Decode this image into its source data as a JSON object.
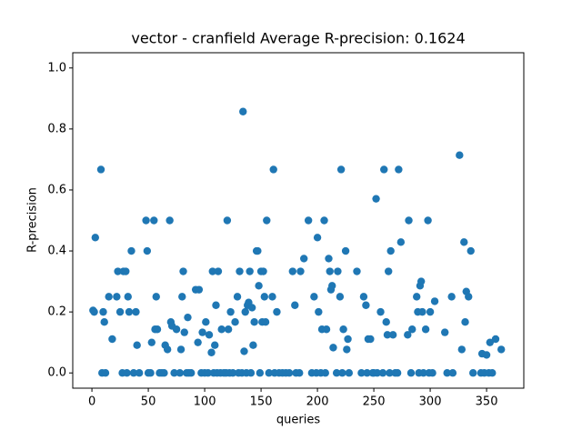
{
  "chart_data": {
    "type": "scatter",
    "title": "vector - cranfield  Average R-precision: 0.1624",
    "x_label": "queries",
    "y_label": "R-precision",
    "xlim": [
      -17,
      383
    ],
    "ylim": [
      -0.05,
      1.05
    ],
    "xticks": [
      0,
      50,
      100,
      150,
      200,
      250,
      300,
      350
    ],
    "yticks": [
      {
        "value": 0,
        "label": "0.0"
      },
      {
        "value": 0.2,
        "label": "0.2"
      },
      {
        "value": 0.4,
        "label": "0.4"
      },
      {
        "value": 0.6,
        "label": "0.6"
      },
      {
        "value": 0.8,
        "label": "0.8"
      },
      {
        "value": 1,
        "label": "1.0"
      }
    ],
    "series": [
      {
        "color": "#1f77b4",
        "x": [
          1,
          2,
          3,
          8,
          9,
          10,
          11,
          12,
          15,
          18,
          22,
          23,
          25,
          27,
          28,
          30,
          31,
          32,
          33,
          35,
          37,
          39,
          40,
          42,
          48,
          49,
          50,
          52,
          53,
          55,
          56,
          57,
          58,
          60,
          62,
          64,
          65,
          67,
          69,
          70,
          71,
          73,
          75,
          78,
          79,
          80,
          81,
          82,
          84,
          85,
          86,
          88,
          92,
          94,
          95,
          97,
          98,
          100,
          101,
          103,
          104,
          106,
          107,
          108,
          109,
          110,
          111,
          112,
          114,
          115,
          117,
          119,
          120,
          121,
          122,
          123,
          125,
          127,
          129,
          130,
          131,
          133,
          134,
          135,
          136,
          137,
          138,
          139,
          140,
          141,
          142,
          143,
          144,
          146,
          147,
          148,
          149,
          150,
          151,
          152,
          153,
          154,
          155,
          157,
          160,
          161,
          162,
          164,
          166,
          169,
          172,
          175,
          178,
          180,
          181,
          184,
          185,
          188,
          192,
          195,
          197,
          199,
          200,
          201,
          203,
          204,
          206,
          207,
          208,
          210,
          211,
          212,
          213,
          214,
          217,
          218,
          220,
          221,
          222,
          223,
          225,
          226,
          227,
          228,
          235,
          239,
          241,
          243,
          244,
          245,
          247,
          249,
          250,
          252,
          253,
          256,
          258,
          259,
          261,
          262,
          263,
          264,
          265,
          267,
          269,
          271,
          272,
          274,
          280,
          281,
          283,
          284,
          288,
          289,
          290,
          291,
          292,
          293,
          294,
          296,
          298,
          299,
          300,
          302,
          304,
          313,
          315,
          319,
          320,
          326,
          328,
          330,
          331,
          332,
          334,
          336,
          338,
          345,
          346,
          348,
          350,
          352,
          353,
          355,
          358,
          363
        ],
        "values": [
          0.205,
          0.2,
          0.444,
          0.667,
          0,
          0.2,
          0.167,
          0,
          0.25,
          0.111,
          0.25,
          0.333,
          0.2,
          0,
          0.333,
          0.333,
          0,
          0.25,
          0.2,
          0.4,
          0,
          0.2,
          0.091,
          0,
          0.5,
          0.4,
          0,
          0,
          0.1,
          0.5,
          0.143,
          0.25,
          0.143,
          0,
          0,
          0,
          0.091,
          0.077,
          0.5,
          0.167,
          0.154,
          0,
          0.143,
          0,
          0.077,
          0.25,
          0.333,
          0.133,
          0,
          0.182,
          0,
          0,
          0.273,
          0.1,
          0.273,
          0,
          0.133,
          0,
          0.167,
          0,
          0.125,
          0.067,
          0.333,
          0,
          0.091,
          0.222,
          0,
          0.333,
          0,
          0.143,
          0,
          0,
          0.5,
          0.143,
          0,
          0.2,
          0,
          0.167,
          0.25,
          0,
          0.333,
          0,
          0.857,
          0.071,
          0.2,
          0,
          0.222,
          0.231,
          0.333,
          0,
          0.214,
          0.091,
          0.167,
          0.4,
          0.4,
          0.286,
          0,
          0.333,
          0.167,
          0.333,
          0.25,
          0.167,
          0.5,
          0,
          0.25,
          0.667,
          0,
          0.2,
          0,
          0,
          0,
          0,
          0.333,
          0.222,
          0,
          0,
          0.333,
          0.375,
          0.5,
          0,
          0.25,
          0,
          0.444,
          0.2,
          0,
          0.143,
          0.5,
          0,
          0.143,
          0.375,
          0.333,
          0.273,
          0.286,
          0.083,
          0,
          0.333,
          0.25,
          0.667,
          0,
          0.143,
          0.4,
          0.077,
          0.111,
          0,
          0.333,
          0,
          0.25,
          0.222,
          0,
          0.111,
          0.111,
          0,
          0,
          0.571,
          0,
          0.2,
          0,
          0.667,
          0.167,
          0.125,
          0.333,
          0,
          0.4,
          0.125,
          0,
          0,
          0.667,
          0.429,
          0.125,
          0.5,
          0,
          0.143,
          0.25,
          0.2,
          0,
          0.286,
          0.3,
          0.2,
          0,
          0.143,
          0.5,
          0,
          0.2,
          0,
          0.235,
          0.133,
          0,
          0.25,
          0,
          0.714,
          0.077,
          0.429,
          0.167,
          0.267,
          0.25,
          0.4,
          0,
          0,
          0.063,
          0,
          0.059,
          0,
          0.1,
          0,
          0.111,
          0.077
        ]
      }
    ]
  }
}
